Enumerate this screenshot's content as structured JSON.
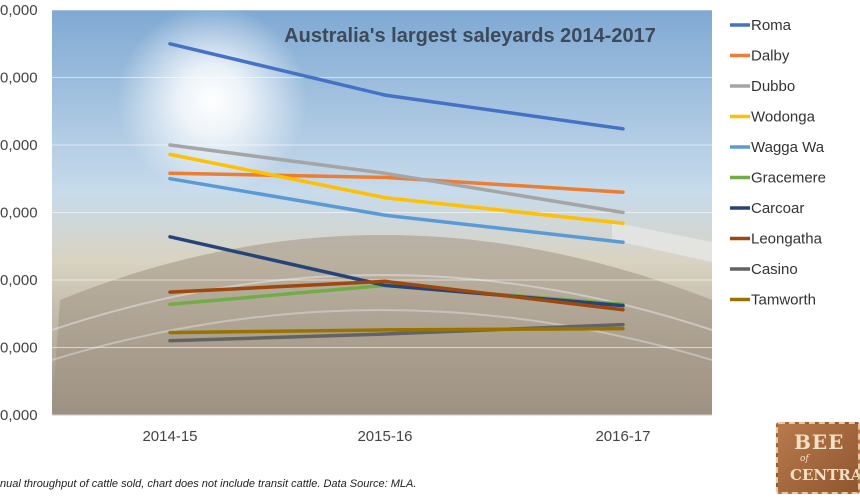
{
  "chart_data": {
    "type": "line",
    "title": "Australia's largest saleyards 2014-2017",
    "categories": [
      "2014-15",
      "2015-16",
      "2016-17"
    ],
    "ylim": [
      0,
      300000
    ],
    "y_ticks": [
      "0,000",
      "0,000",
      "0,000",
      "0,000",
      "0,000",
      "0,000",
      "0,000"
    ],
    "grid": true,
    "legend_position": "right",
    "series": [
      {
        "name": "Roma",
        "color": "#4472c4",
        "values": [
          275000,
          237000,
          212000
        ]
      },
      {
        "name": "Dalby",
        "color": "#ed7d31",
        "values": [
          179000,
          176000,
          165000
        ]
      },
      {
        "name": "Dubbo",
        "color": "#a5a5a5",
        "values": [
          200000,
          179000,
          150000
        ]
      },
      {
        "name": "Wodonga",
        "color": "#ffc000",
        "values": [
          193000,
          161000,
          142000
        ]
      },
      {
        "name": "Wagga Wagga",
        "color": "#5b9bd5",
        "values": [
          175000,
          148000,
          128000
        ]
      },
      {
        "name": "Gracemere",
        "color": "#70ad47",
        "values": [
          82000,
          96000,
          82000
        ]
      },
      {
        "name": "Carcoar",
        "color": "#264478",
        "values": [
          132000,
          96000,
          81000
        ]
      },
      {
        "name": "Leongatha",
        "color": "#9e480e",
        "values": [
          91000,
          99000,
          78000
        ]
      },
      {
        "name": "Casino",
        "color": "#636363",
        "values": [
          55000,
          60000,
          67000
        ]
      },
      {
        "name": "Tamworth",
        "color": "#997300",
        "values": [
          61000,
          63000,
          64000
        ]
      }
    ]
  },
  "legend_labels": [
    "Roma",
    "Dalby",
    "Dubbo",
    "Wodonga",
    "Wagga Wa",
    "Gracemere",
    "Carcoar",
    "Leongatha",
    "Casino",
    "Tamworth"
  ],
  "footnote": "nual throughput of cattle sold, chart does not include transit cattle. Data Source: MLA.",
  "logo": {
    "line1": "BEE",
    "line2": "of",
    "line3": "CENTRA"
  }
}
